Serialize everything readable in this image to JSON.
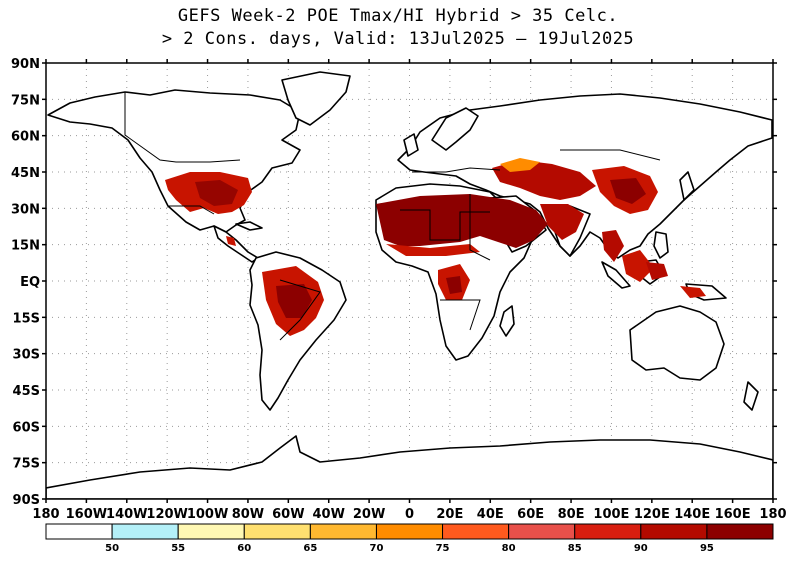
{
  "title": {
    "line1": "GEFS Week-2 POE Tmax/HI Hybrid > 35 Celc.",
    "line2": "> 2 Cons. days, Valid: 13Jul2025 – 19Jul2025"
  },
  "lat_labels": [
    "90N",
    "75N",
    "60N",
    "45N",
    "30N",
    "15N",
    "EQ",
    "15S",
    "30S",
    "45S",
    "60S",
    "75S",
    "90S"
  ],
  "lon_labels": [
    "180",
    "160W",
    "140W",
    "120W",
    "100W",
    "80W",
    "60W",
    "40W",
    "20W",
    "0",
    "20E",
    "40E",
    "60E",
    "80E",
    "100E",
    "120E",
    "140E",
    "160E",
    "180"
  ],
  "colorbar": {
    "tick_labels": [
      "50",
      "55",
      "60",
      "65",
      "70",
      "75",
      "80",
      "85",
      "90",
      "95"
    ],
    "colors": [
      "#ffffff",
      "#b4f0f8",
      "#fff8b4",
      "#ffe070",
      "#ffb830",
      "#ff8c00",
      "#ff5a1e",
      "#e8504a",
      "#d81e10",
      "#b40a00",
      "#8c0000"
    ]
  }
}
